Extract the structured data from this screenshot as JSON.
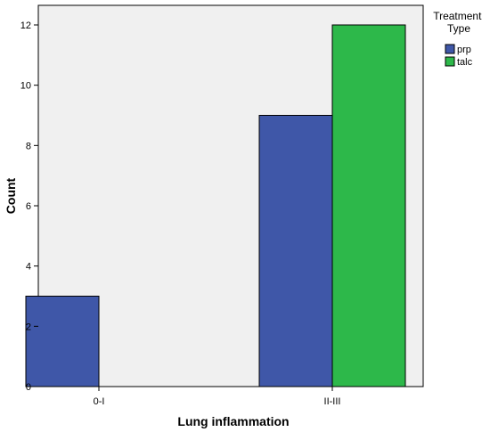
{
  "chart_data": {
    "type": "bar",
    "xlabel": "Lung inflammation",
    "ylabel": "Count",
    "categories": [
      "0-I",
      "II-III"
    ],
    "series": [
      {
        "name": "prp",
        "values": [
          3,
          9
        ],
        "color": "#3f57a8"
      },
      {
        "name": "talc",
        "values": [
          0,
          12
        ],
        "color": "#2db84a"
      }
    ],
    "ylim": [
      0,
      12
    ],
    "yticks": [
      "0",
      "2",
      "4",
      "6",
      "8",
      "10",
      "12"
    ],
    "grid": false,
    "plot_background": "#f0f0f0",
    "legend": {
      "title": "Treatment Type",
      "placement": "right"
    }
  }
}
